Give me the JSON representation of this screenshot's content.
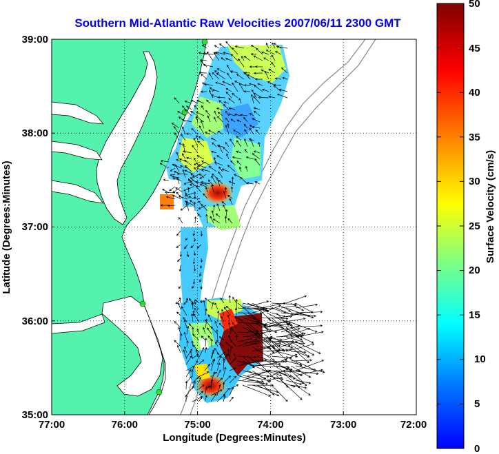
{
  "title": "Southern Mid-Atlantic Raw Velocities 2007/06/11 2300 GMT",
  "map": {
    "xlabel": "Longitude (Degrees:Minutes)",
    "ylabel": "Latitude (Degrees:Minutes)",
    "lon_ticks": [
      "77:00",
      "76:00",
      "75:00",
      "74:00",
      "73:00",
      "72:00"
    ],
    "lat_ticks": [
      "39:00",
      "38:00",
      "37:00",
      "36:00",
      "35:00"
    ],
    "lon_range": [
      -77,
      -72
    ],
    "lat_range": [
      35,
      39
    ],
    "grid": true,
    "land_color": "#55f2ae",
    "ocean_color": "#ffffff"
  },
  "colorbar": {
    "label": "Surface Velocity (cm/s)",
    "ticks": [
      "50",
      "45",
      "40",
      "35",
      "30",
      "25",
      "20",
      "15",
      "10",
      "5",
      "0"
    ],
    "min": 0,
    "max": 50,
    "colors": [
      "#0000ff",
      "#0080ff",
      "#00ffff",
      "#80ff80",
      "#ffff00",
      "#ff8000",
      "#ff0000",
      "#800000"
    ]
  }
}
